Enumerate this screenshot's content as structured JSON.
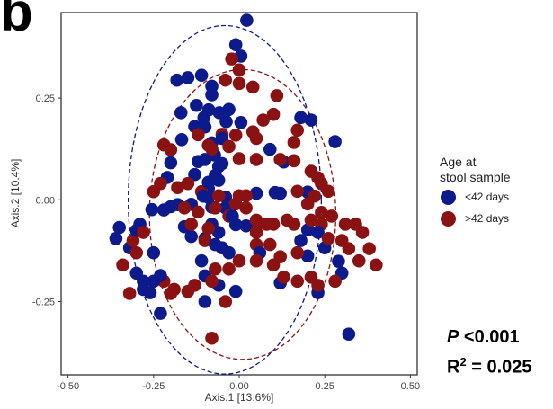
{
  "panel_label": "b",
  "legend": {
    "title_line1": "Age at",
    "title_line2": "stool sample",
    "items": [
      {
        "label": "<42 days",
        "color": "#0c1a8c"
      },
      {
        "label": ">42 days",
        "color": "#8b1212"
      }
    ]
  },
  "stats": {
    "p_symbol": "P",
    "p_value": "<0.001",
    "r2_symbol": "R",
    "r2_exp": "2",
    "r2_value": " = 0.025"
  },
  "chart_data": {
    "type": "scatter",
    "xlabel": "Axis.1  [13.6%]",
    "ylabel": "Axis.2  [10.4%]",
    "xlim": [
      -0.52,
      0.52
    ],
    "ylim": [
      -0.43,
      0.46
    ],
    "xticks": [
      -0.5,
      -0.25,
      0.0,
      0.25,
      0.5
    ],
    "xtick_labels": [
      "-0.50",
      "-0.25",
      "0.00",
      "0.25",
      "0.50"
    ],
    "yticks": [
      -0.25,
      0.0,
      0.25
    ],
    "ytick_labels": [
      "-0.25",
      "0.00",
      "0.25"
    ],
    "grid": false,
    "legend_position": "right",
    "ellipses": [
      {
        "series": "<42 days",
        "center": [
          -0.042,
          0.0
        ],
        "radii": [
          0.282,
          0.428
        ],
        "color": "#0c1a8c",
        "style": "dashed"
      },
      {
        "series": ">42 days",
        "center": [
          0.01,
          -0.036
        ],
        "radii": [
          0.272,
          0.356
        ],
        "color": "#8b1212",
        "style": "dashed"
      }
    ],
    "series": [
      {
        "name": "<42 days",
        "color": "#0c1a8c",
        "points": [
          [
            0.022,
            0.441
          ],
          [
            -0.01,
            0.381
          ],
          [
            0.005,
            0.353
          ],
          [
            -0.11,
            0.306
          ],
          [
            -0.15,
            0.3
          ],
          [
            -0.182,
            0.294
          ],
          [
            -0.08,
            0.279
          ],
          [
            -0.08,
            0.258
          ],
          [
            -0.17,
            0.214
          ],
          [
            -0.089,
            0.221
          ],
          [
            -0.058,
            0.214
          ],
          [
            -0.03,
            0.222
          ],
          [
            -0.168,
            0.148
          ],
          [
            -0.125,
            0.232
          ],
          [
            -0.103,
            0.202
          ],
          [
            -0.13,
            0.18
          ],
          [
            0.005,
            0.19
          ],
          [
            -0.038,
            0.192
          ],
          [
            -0.1,
            0.179
          ],
          [
            -0.05,
            0.151
          ],
          [
            -0.08,
            0.14
          ],
          [
            -0.1,
            0.099
          ],
          [
            -0.12,
            0.094
          ],
          [
            -0.06,
            0.082
          ],
          [
            -0.072,
            0.11
          ],
          [
            -0.06,
            0.048
          ],
          [
            -0.13,
            0.062
          ],
          [
            -0.09,
            0.043
          ],
          [
            -0.07,
            0.06
          ],
          [
            -0.05,
            0.089
          ],
          [
            -0.2,
            0.091
          ],
          [
            -0.21,
            0.055
          ],
          [
            -0.09,
            0.028
          ],
          [
            -0.04,
            0.007
          ],
          [
            0.05,
            0.016
          ],
          [
            0.09,
            0.124
          ],
          [
            0.13,
            0.093
          ],
          [
            0.18,
            0.202
          ],
          [
            0.21,
            0.196
          ],
          [
            0.28,
            0.143
          ],
          [
            0.2,
            0.019
          ],
          [
            0.12,
            0.016
          ],
          [
            0.105,
            0.018
          ],
          [
            -0.105,
            0.009
          ],
          [
            -0.14,
            -0.011
          ],
          [
            -0.2,
            -0.017
          ],
          [
            -0.18,
            -0.012
          ],
          [
            -0.255,
            -0.024
          ],
          [
            -0.08,
            -0.018
          ],
          [
            -0.09,
            0.006
          ],
          [
            -0.04,
            -0.02
          ],
          [
            -0.02,
            -0.04
          ],
          [
            -0.01,
            -0.061
          ],
          [
            0.02,
            -0.064
          ],
          [
            -0.08,
            -0.06
          ],
          [
            -0.06,
            -0.08
          ],
          [
            -0.16,
            -0.066
          ],
          [
            -0.22,
            -0.025
          ],
          [
            -0.29,
            -0.06
          ],
          [
            -0.3,
            -0.075
          ],
          [
            -0.32,
            -0.118
          ],
          [
            -0.35,
            -0.068
          ],
          [
            -0.36,
            -0.095
          ],
          [
            -0.14,
            -0.09
          ],
          [
            -0.1,
            -0.095
          ],
          [
            -0.07,
            -0.11
          ],
          [
            -0.05,
            -0.118
          ],
          [
            -0.03,
            -0.13
          ],
          [
            -0.11,
            -0.15
          ],
          [
            -0.25,
            -0.13
          ],
          [
            -0.3,
            -0.18
          ],
          [
            -0.28,
            -0.22
          ],
          [
            -0.26,
            -0.228
          ],
          [
            -0.25,
            -0.2
          ],
          [
            -0.28,
            -0.2
          ],
          [
            -0.23,
            -0.186
          ],
          [
            -0.1,
            -0.187
          ],
          [
            -0.01,
            -0.225
          ],
          [
            -0.06,
            -0.21
          ],
          [
            0.06,
            -0.13
          ],
          [
            0.2,
            -0.138
          ],
          [
            0.25,
            -0.118
          ],
          [
            0.29,
            -0.151
          ],
          [
            0.3,
            -0.18
          ],
          [
            0.2,
            -0.074
          ],
          [
            0.23,
            -0.08
          ],
          [
            0.23,
            -0.228
          ],
          [
            0.32,
            -0.33
          ],
          [
            0.12,
            -0.204
          ],
          [
            0.18,
            -0.1
          ],
          [
            -0.1,
            -0.25
          ],
          [
            -0.23,
            -0.279
          ]
        ]
      },
      {
        "name": ">42 days",
        "color": "#8b1212",
        "points": [
          [
            -0.022,
            0.346
          ],
          [
            0.0,
            0.319
          ],
          [
            -0.04,
            0.294
          ],
          [
            0.0,
            0.286
          ],
          [
            0.04,
            0.277
          ],
          [
            0.11,
            0.256
          ],
          [
            0.1,
            0.21
          ],
          [
            0.07,
            0.196
          ],
          [
            0.17,
            0.171
          ],
          [
            0.16,
            0.141
          ],
          [
            0.04,
            0.167
          ],
          [
            0.05,
            0.151
          ],
          [
            -0.05,
            0.161
          ],
          [
            -0.01,
            0.159
          ],
          [
            -0.09,
            0.134
          ],
          [
            -0.12,
            0.16
          ],
          [
            -0.22,
            0.135
          ],
          [
            -0.2,
            0.123
          ],
          [
            -0.08,
            0.125
          ],
          [
            -0.03,
            0.131
          ],
          [
            0.0,
            0.101
          ],
          [
            0.05,
            0.099
          ],
          [
            0.12,
            0.099
          ],
          [
            0.16,
            0.096
          ],
          [
            0.21,
            0.07
          ],
          [
            0.23,
            0.054
          ],
          [
            0.24,
            0.04
          ],
          [
            0.26,
            0.021
          ],
          [
            0.22,
            0.009
          ],
          [
            0.17,
            0.021
          ],
          [
            0.2,
            -0.01
          ],
          [
            0.24,
            -0.031
          ],
          [
            0.27,
            -0.04
          ],
          [
            0.31,
            -0.06
          ],
          [
            0.34,
            -0.06
          ],
          [
            0.36,
            -0.08
          ],
          [
            0.38,
            -0.12
          ],
          [
            0.4,
            -0.16
          ],
          [
            0.35,
            -0.15
          ],
          [
            0.32,
            -0.12
          ],
          [
            0.3,
            -0.1
          ],
          [
            0.26,
            -0.095
          ],
          [
            0.24,
            -0.06
          ],
          [
            0.21,
            -0.05
          ],
          [
            0.14,
            -0.05
          ],
          [
            0.1,
            -0.06
          ],
          [
            0.08,
            -0.06
          ],
          [
            0.05,
            -0.05
          ],
          [
            0.02,
            -0.02
          ],
          [
            -0.01,
            -0.01
          ],
          [
            0.0,
            0.01
          ],
          [
            0.02,
            0.01
          ],
          [
            -0.03,
            -0.04
          ],
          [
            -0.09,
            -0.07
          ],
          [
            -0.1,
            -0.1
          ],
          [
            -0.14,
            -0.06
          ],
          [
            -0.16,
            -0.02
          ],
          [
            -0.12,
            -0.03
          ],
          [
            -0.07,
            -0.02
          ],
          [
            -0.06,
            0.01
          ],
          [
            -0.11,
            0.02
          ],
          [
            -0.15,
            0.04
          ],
          [
            -0.18,
            0.03
          ],
          [
            -0.23,
            0.04
          ],
          [
            -0.25,
            0.02
          ],
          [
            -0.28,
            -0.08
          ],
          [
            -0.31,
            -0.1
          ],
          [
            -0.3,
            -0.13
          ],
          [
            -0.34,
            -0.16
          ],
          [
            -0.32,
            -0.23
          ],
          [
            -0.22,
            -0.2
          ],
          [
            -0.2,
            -0.23
          ],
          [
            -0.19,
            -0.22
          ],
          [
            -0.15,
            -0.225
          ],
          [
            -0.13,
            -0.21
          ],
          [
            -0.08,
            -0.2
          ],
          [
            -0.07,
            -0.17
          ],
          [
            -0.03,
            -0.17
          ],
          [
            0.0,
            -0.15
          ],
          [
            0.05,
            -0.15
          ],
          [
            0.1,
            -0.16
          ],
          [
            0.13,
            -0.19
          ],
          [
            0.17,
            -0.2
          ],
          [
            0.21,
            -0.19
          ],
          [
            0.23,
            -0.21
          ],
          [
            0.28,
            -0.2
          ],
          [
            0.12,
            -0.14
          ],
          [
            0.09,
            -0.11
          ],
          [
            -0.04,
            -0.25
          ],
          [
            -0.08,
            -0.34
          ],
          [
            0.05,
            -0.11
          ],
          [
            0.05,
            -0.08
          ],
          [
            0.05,
            -0.06
          ],
          [
            0.16,
            -0.06
          ],
          [
            0.17,
            -0.13
          ]
        ]
      }
    ]
  }
}
